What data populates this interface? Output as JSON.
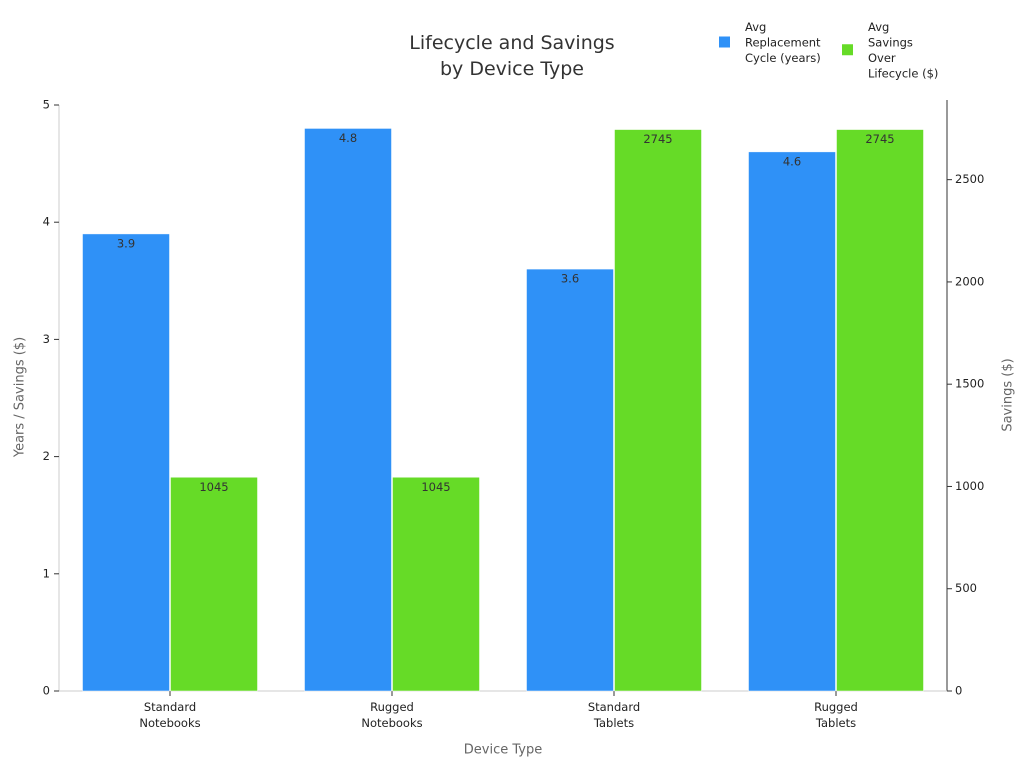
{
  "chart_data": {
    "type": "bar",
    "title": "Lifecycle and Savings by Device Type",
    "x_label": "Device Type",
    "y_label": "Years / Savings ($)",
    "y2_label": "Savings ($)",
    "categories": [
      "Standard Notebooks",
      "Rugged Notebooks",
      "Standard Tablets",
      "Rugged Tablets"
    ],
    "series": [
      {
        "name": "Avg Replacement Cycle (years)",
        "color": "#2f91f7",
        "values": [
          3.9,
          4.8,
          3.6,
          4.6
        ]
      },
      {
        "name": "Avg Savings Over Lifecycle ($)",
        "color": "#66db27",
        "values": [
          1045,
          1045,
          2745,
          2745
        ],
        "axis": "y2"
      }
    ],
    "ylim": [
      0,
      5
    ],
    "yticks": [
      0,
      1,
      2,
      3,
      4,
      5
    ],
    "y2lim": [
      0,
      2865
    ],
    "y2ticks": [
      0,
      500,
      1000,
      1500,
      2000,
      2500
    ],
    "legend": "top-right"
  }
}
